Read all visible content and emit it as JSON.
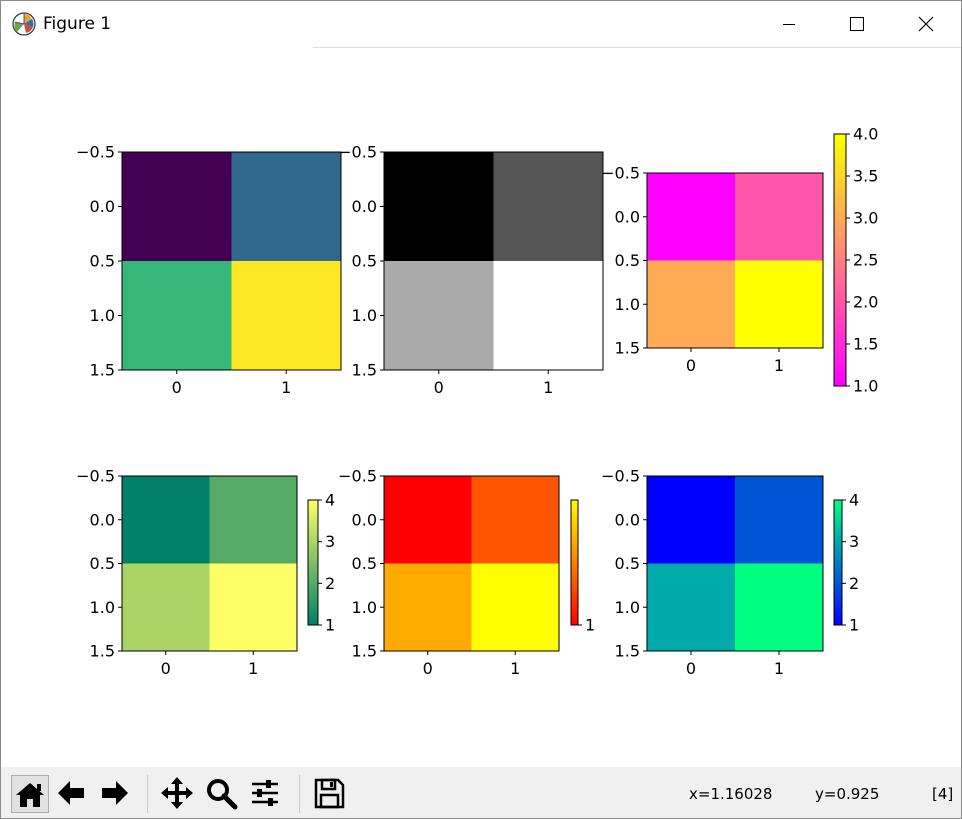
{
  "window": {
    "title": "Figure 1",
    "app_icon": "matplotlib-logo-icon",
    "controls": [
      "minimize-icon",
      "maximize-icon",
      "close-icon"
    ]
  },
  "toolbar": {
    "buttons": [
      {
        "name": "home-button",
        "icon": "home-icon"
      },
      {
        "name": "back-button",
        "icon": "arrow-left-icon"
      },
      {
        "name": "forward-button",
        "icon": "arrow-right-icon"
      },
      {
        "name": "pan-button",
        "icon": "move-icon"
      },
      {
        "name": "zoom-button",
        "icon": "magnifier-icon"
      },
      {
        "name": "subplots-button",
        "icon": "sliders-icon"
      },
      {
        "name": "save-button",
        "icon": "floppy-disk-icon"
      }
    ],
    "x_readout": "x=1.16028",
    "y_readout": "y=0.925",
    "value_readout": "[4]"
  },
  "chart_data": [
    {
      "type": "heatmap",
      "colormap": "viridis",
      "x_ticks": [
        "0",
        "1"
      ],
      "y_ticks": [
        "−0.5",
        "0.0",
        "0.5",
        "1.0",
        "1.5"
      ],
      "values": [
        [
          1,
          2
        ],
        [
          3,
          4
        ]
      ],
      "cell_colors": [
        [
          "#440154",
          "#31688e"
        ],
        [
          "#35b779",
          "#fde725"
        ]
      ],
      "colorbar": null
    },
    {
      "type": "heatmap",
      "colormap": "gray",
      "x_ticks": [
        "0",
        "1"
      ],
      "y_ticks": [
        "−0.5",
        "0.0",
        "0.5",
        "1.0",
        "1.5"
      ],
      "values": [
        [
          1,
          2
        ],
        [
          3,
          4
        ]
      ],
      "cell_colors": [
        [
          "#000000",
          "#555555"
        ],
        [
          "#aaaaaa",
          "#ffffff"
        ]
      ],
      "colorbar": null
    },
    {
      "type": "heatmap",
      "colormap": "spring",
      "x_ticks": [
        "0",
        "1"
      ],
      "y_ticks": [
        "−0.5",
        "0.0",
        "0.5",
        "1.0",
        "1.5"
      ],
      "values": [
        [
          1,
          2
        ],
        [
          3,
          4
        ]
      ],
      "cell_colors": [
        [
          "#ff00ff",
          "#ff55aa"
        ],
        [
          "#ffaa55",
          "#ffff00"
        ]
      ],
      "colorbar": {
        "min": 1.0,
        "max": 4.0,
        "ticks": [
          "1.0",
          "1.5",
          "2.0",
          "2.5",
          "3.0",
          "3.5",
          "4.0"
        ],
        "gradient": [
          "#ff00ff",
          "#ffff00"
        ]
      }
    },
    {
      "type": "heatmap",
      "colormap": "summer",
      "x_ticks": [
        "0",
        "1"
      ],
      "y_ticks": [
        "−0.5",
        "0.0",
        "0.5",
        "1.0",
        "1.5"
      ],
      "values": [
        [
          1,
          2
        ],
        [
          3,
          4
        ]
      ],
      "cell_colors": [
        [
          "#008066",
          "#55aa66"
        ],
        [
          "#aad566",
          "#ffff66"
        ]
      ],
      "colorbar": {
        "min": 1,
        "max": 4,
        "ticks": [
          "1",
          "2",
          "3",
          "4"
        ],
        "gradient": [
          "#008066",
          "#ffff66"
        ]
      }
    },
    {
      "type": "heatmap",
      "colormap": "autumn",
      "x_ticks": [
        "0",
        "1"
      ],
      "y_ticks": [
        "−0.5",
        "0.0",
        "0.5",
        "1.0",
        "1.5"
      ],
      "values": [
        [
          1,
          2
        ],
        [
          3,
          4
        ]
      ],
      "cell_colors": [
        [
          "#ff0000",
          "#ff5500"
        ],
        [
          "#ffaa00",
          "#ffff00"
        ]
      ],
      "colorbar": {
        "min": 1,
        "max": 4,
        "ticks": [
          "1"
        ],
        "gradient": [
          "#ff0000",
          "#ffff00"
        ]
      }
    },
    {
      "type": "heatmap",
      "colormap": "winter",
      "x_ticks": [
        "0",
        "1"
      ],
      "y_ticks": [
        "−0.5",
        "0.0",
        "0.5",
        "1.0",
        "1.5"
      ],
      "values": [
        [
          1,
          2
        ],
        [
          3,
          4
        ]
      ],
      "cell_colors": [
        [
          "#0000ff",
          "#0055d5"
        ],
        [
          "#00aaaa",
          "#00ff80"
        ]
      ],
      "colorbar": {
        "min": 1,
        "max": 4,
        "ticks": [
          "1",
          "2",
          "3",
          "4"
        ],
        "gradient": [
          "#0000ff",
          "#00ff80"
        ]
      }
    }
  ]
}
